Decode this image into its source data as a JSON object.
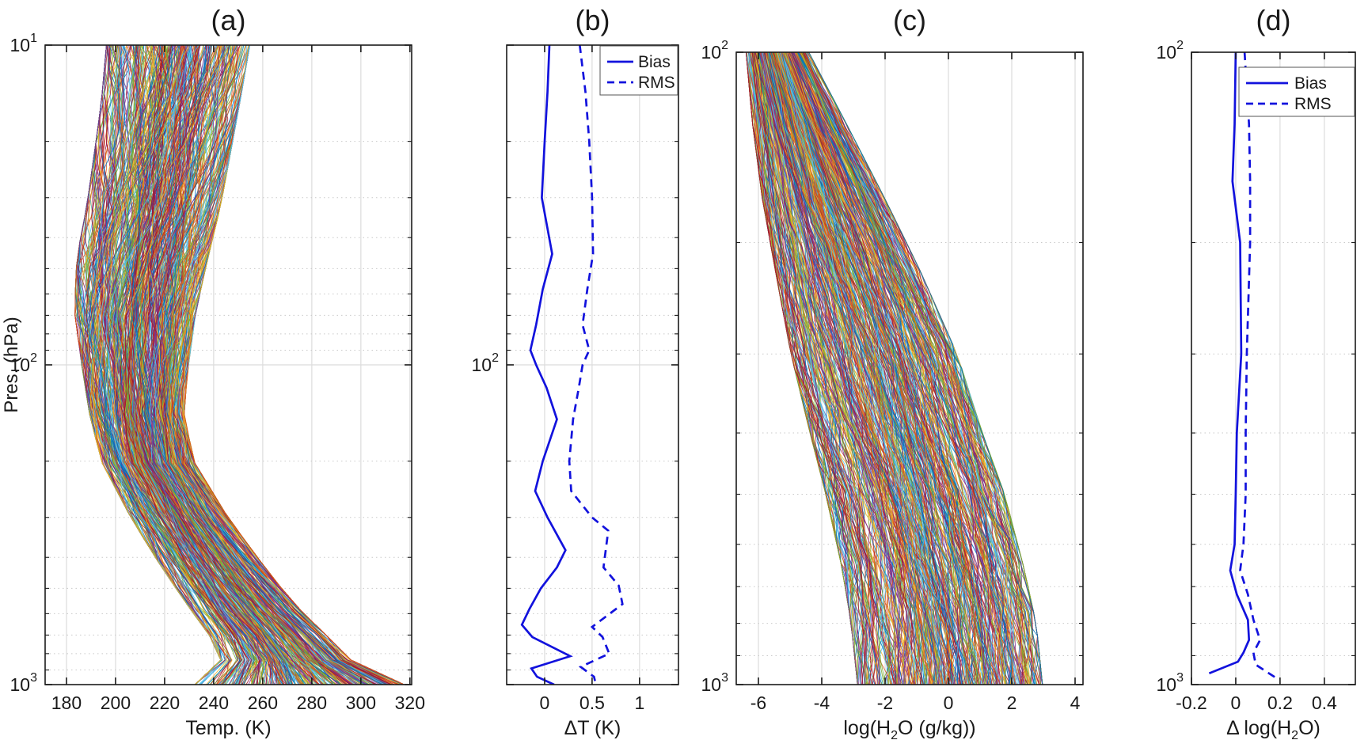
{
  "figure": {
    "background": "#ffffff",
    "axis_color": "#1a1a1a",
    "text_color": "#1a1a1a",
    "grid_major_color": "#dcdcdc",
    "grid_minor_color": "#c9c9c9",
    "accent_blue": "#1212dd",
    "profile_palette": [
      "#0072BD",
      "#D95319",
      "#EDB120",
      "#7E2F8E",
      "#77AC30",
      "#4DBEEE",
      "#A2142F"
    ]
  },
  "chart_data": [
    {
      "id": "a",
      "type": "line",
      "title": "(a)",
      "xlabel": [
        {
          "t": "Temp. (K)"
        }
      ],
      "ylabel": "Pres. (hPa)",
      "x_ticks": [
        180,
        200,
        220,
        240,
        260,
        280,
        300,
        320
      ],
      "x_tick_labels": [
        "180",
        "200",
        "220",
        "240",
        "260",
        "280",
        "300",
        "320"
      ],
      "xlim": [
        171.3,
        320.7
      ],
      "y_scale": "log",
      "ylim": [
        10,
        1000
      ],
      "y_decade_exponents": [
        1,
        2,
        3
      ],
      "y_labeled_exponents": [
        1,
        2,
        3
      ],
      "content": "ensemble of many overlapping colored atmospheric temperature profiles (spaghetti plot)",
      "profile_envelope": {
        "pressure_hpa": [
          10,
          15,
          22,
          32,
          46,
          68,
          100,
          140,
          200,
          300,
          400,
          550,
          700,
          850,
          1000
        ],
        "min": [
          196,
          194,
          191,
          188,
          184,
          183,
          186,
          189,
          194,
          206,
          216,
          228,
          238,
          243,
          232
        ],
        "max": [
          255,
          251,
          247,
          243,
          238,
          233,
          230,
          228,
          232,
          246,
          258,
          272,
          286,
          297,
          318
        ]
      }
    },
    {
      "id": "b",
      "type": "line",
      "title": "(b)",
      "xlabel": [
        {
          "t": "ΔT (K)"
        }
      ],
      "x_ticks": [
        0,
        0.5,
        1
      ],
      "x_tick_labels": [
        "0",
        "0.5",
        "1"
      ],
      "xlim": [
        -0.4,
        1.41
      ],
      "y_scale": "log",
      "ylim": [
        10,
        1000
      ],
      "y_decade_exponents": [
        1,
        2,
        3
      ],
      "y_labeled_exponents": [
        2
      ],
      "legend": {
        "position": "top-right",
        "entries": [
          {
            "label": "Bias",
            "style": "solid"
          },
          {
            "label": "RMS",
            "style": "dashed"
          }
        ]
      },
      "series": [
        {
          "name": "Bias",
          "style": "solid",
          "points": [
            [
              10,
              0.05
            ],
            [
              14,
              0.03
            ],
            [
              20,
              0.0
            ],
            [
              30,
              -0.03
            ],
            [
              45,
              0.08
            ],
            [
              58,
              -0.02
            ],
            [
              75,
              -0.09
            ],
            [
              90,
              -0.15
            ],
            [
              100,
              -0.09
            ],
            [
              118,
              0.02
            ],
            [
              148,
              0.13
            ],
            [
              200,
              -0.02
            ],
            [
              248,
              -0.1
            ],
            [
              300,
              0.03
            ],
            [
              380,
              0.22
            ],
            [
              430,
              0.13
            ],
            [
              500,
              -0.04
            ],
            [
              580,
              -0.16
            ],
            [
              650,
              -0.24
            ],
            [
              710,
              -0.13
            ],
            [
              815,
              0.27
            ],
            [
              890,
              -0.14
            ],
            [
              945,
              -0.08
            ],
            [
              1000,
              0.1
            ]
          ]
        },
        {
          "name": "RMS",
          "style": "dashed",
          "points": [
            [
              10,
              0.37
            ],
            [
              14,
              0.43
            ],
            [
              20,
              0.47
            ],
            [
              30,
              0.5
            ],
            [
              45,
              0.51
            ],
            [
              58,
              0.45
            ],
            [
              75,
              0.4
            ],
            [
              90,
              0.47
            ],
            [
              100,
              0.4
            ],
            [
              118,
              0.36
            ],
            [
              148,
              0.3
            ],
            [
              200,
              0.26
            ],
            [
              248,
              0.28
            ],
            [
              300,
              0.5
            ],
            [
              330,
              0.67
            ],
            [
              430,
              0.62
            ],
            [
              490,
              0.78
            ],
            [
              560,
              0.82
            ],
            [
              660,
              0.5
            ],
            [
              710,
              0.61
            ],
            [
              800,
              0.68
            ],
            [
              880,
              0.38
            ],
            [
              945,
              0.52
            ],
            [
              1000,
              0.54
            ]
          ]
        }
      ]
    },
    {
      "id": "c",
      "type": "line",
      "title": "(c)",
      "xlabel": [
        {
          "t": "log(H"
        },
        {
          "t": "2",
          "sub": true
        },
        {
          "t": "O (g/kg))"
        }
      ],
      "x_ticks": [
        -6,
        -4,
        -2,
        0,
        2,
        4
      ],
      "x_tick_labels": [
        "-6",
        "-4",
        "-2",
        "0",
        "2",
        "4"
      ],
      "xlim": [
        -6.7,
        4.25
      ],
      "y_scale": "log",
      "ylim": [
        100,
        1000
      ],
      "y_decade_exponents": [
        2,
        3
      ],
      "y_labeled_exponents": [
        2,
        3
      ],
      "content": "ensemble of many overlapping colored log water-vapour profiles (spaghetti plot)",
      "profile_envelope": {
        "pressure_hpa": [
          100,
          130,
          170,
          220,
          300,
          400,
          500,
          650,
          800,
          1000
        ],
        "min": [
          -6.4,
          -6.2,
          -5.9,
          -5.5,
          -5.0,
          -4.4,
          -3.9,
          -3.4,
          -3.1,
          -2.9
        ],
        "max": [
          -4.4,
          -3.2,
          -2.0,
          -0.9,
          0.3,
          1.1,
          1.8,
          2.4,
          2.8,
          3.0
        ]
      }
    },
    {
      "id": "d",
      "type": "line",
      "title": "(d)",
      "xlabel": [
        {
          "t": "Δ log(H"
        },
        {
          "t": "2",
          "sub": true
        },
        {
          "t": "O)"
        }
      ],
      "x_ticks": [
        -0.2,
        0,
        0.2,
        0.4
      ],
      "x_tick_labels": [
        "-0.2",
        "0",
        "0.2",
        "0.4"
      ],
      "xlim": [
        -0.2,
        0.54
      ],
      "y_scale": "log",
      "ylim": [
        100,
        1000
      ],
      "y_decade_exponents": [
        2,
        3
      ],
      "y_labeled_exponents": [
        2,
        3
      ],
      "legend": {
        "position": "top-right",
        "entries": [
          {
            "label": "Bias",
            "style": "solid"
          },
          {
            "label": "RMS",
            "style": "dashed"
          }
        ]
      },
      "series": [
        {
          "name": "Bias",
          "style": "solid",
          "points": [
            [
              100,
              0.0
            ],
            [
              130,
              -0.005
            ],
            [
              160,
              -0.015
            ],
            [
              200,
              0.02
            ],
            [
              300,
              0.025
            ],
            [
              400,
              0.005
            ],
            [
              500,
              0.0
            ],
            [
              600,
              -0.005
            ],
            [
              660,
              -0.025
            ],
            [
              720,
              0.005
            ],
            [
              790,
              0.055
            ],
            [
              850,
              0.06
            ],
            [
              890,
              0.035
            ],
            [
              920,
              0.01
            ],
            [
              960,
              -0.12
            ]
          ]
        },
        {
          "name": "RMS",
          "style": "dashed",
          "points": [
            [
              100,
              0.04
            ],
            [
              130,
              0.06
            ],
            [
              160,
              0.065
            ],
            [
              200,
              0.065
            ],
            [
              300,
              0.05
            ],
            [
              400,
              0.045
            ],
            [
              500,
              0.045
            ],
            [
              600,
              0.035
            ],
            [
              660,
              0.02
            ],
            [
              720,
              0.055
            ],
            [
              790,
              0.08
            ],
            [
              850,
              0.11
            ],
            [
              890,
              0.08
            ],
            [
              930,
              0.09
            ],
            [
              975,
              0.18
            ]
          ]
        }
      ]
    }
  ],
  "render": {
    "profiles_per_panel": 480,
    "seed": 987654321
  }
}
